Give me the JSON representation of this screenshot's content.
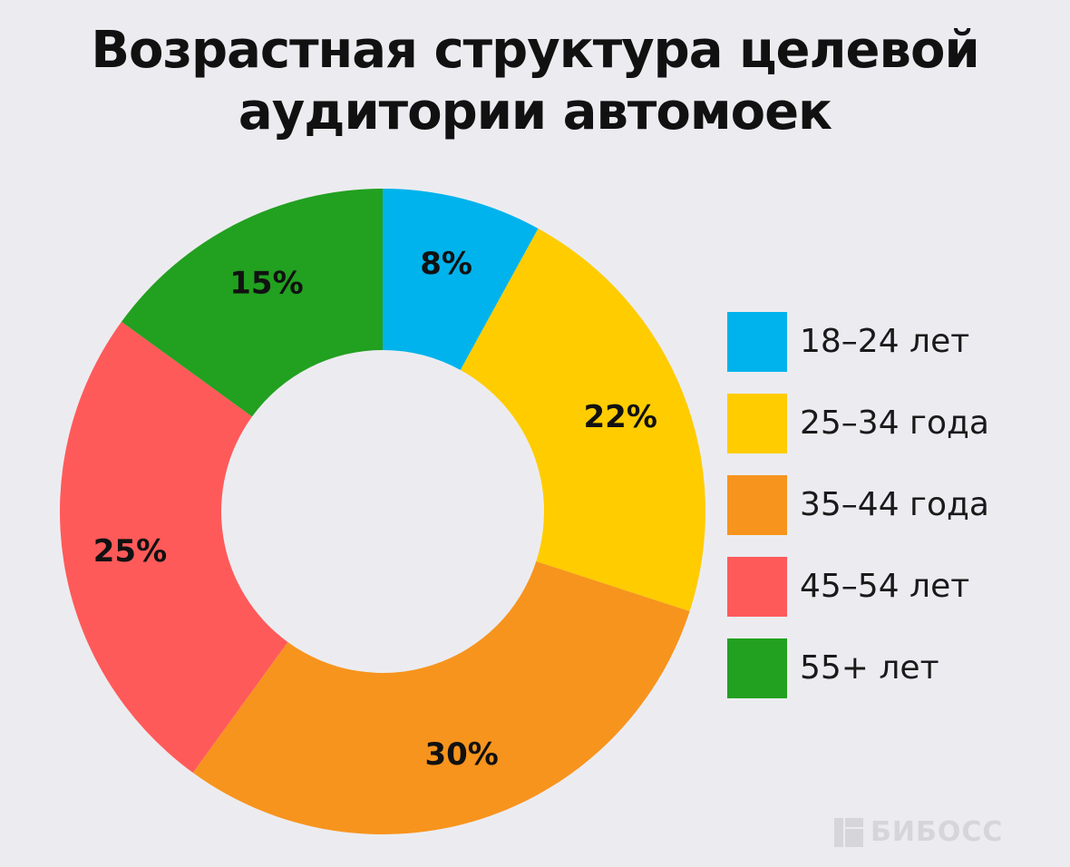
{
  "title": {
    "line1": "Возрастная структура целевой",
    "line2": "аудитории автомоек"
  },
  "chart_data": {
    "type": "pie",
    "donut": true,
    "title": "Возрастная структура целевой аудитории автомоек",
    "legend_position": "right",
    "slices": [
      {
        "label": "18–24 лет",
        "value": 8,
        "display": "8%",
        "color": "#00b3ec"
      },
      {
        "label": "25–34 года",
        "value": 22,
        "display": "22%",
        "color": "#ffcc00"
      },
      {
        "label": "35–44 года",
        "value": 30,
        "display": "30%",
        "color": "#f7941d"
      },
      {
        "label": "45–54 лет",
        "value": 25,
        "display": "25%",
        "color": "#ff5a5a"
      },
      {
        "label": "55+ лет",
        "value": 15,
        "display": "15%",
        "color": "#22a020"
      }
    ]
  },
  "watermark": {
    "text": "БИБОСС",
    "icon": "bibos-logo-icon"
  }
}
